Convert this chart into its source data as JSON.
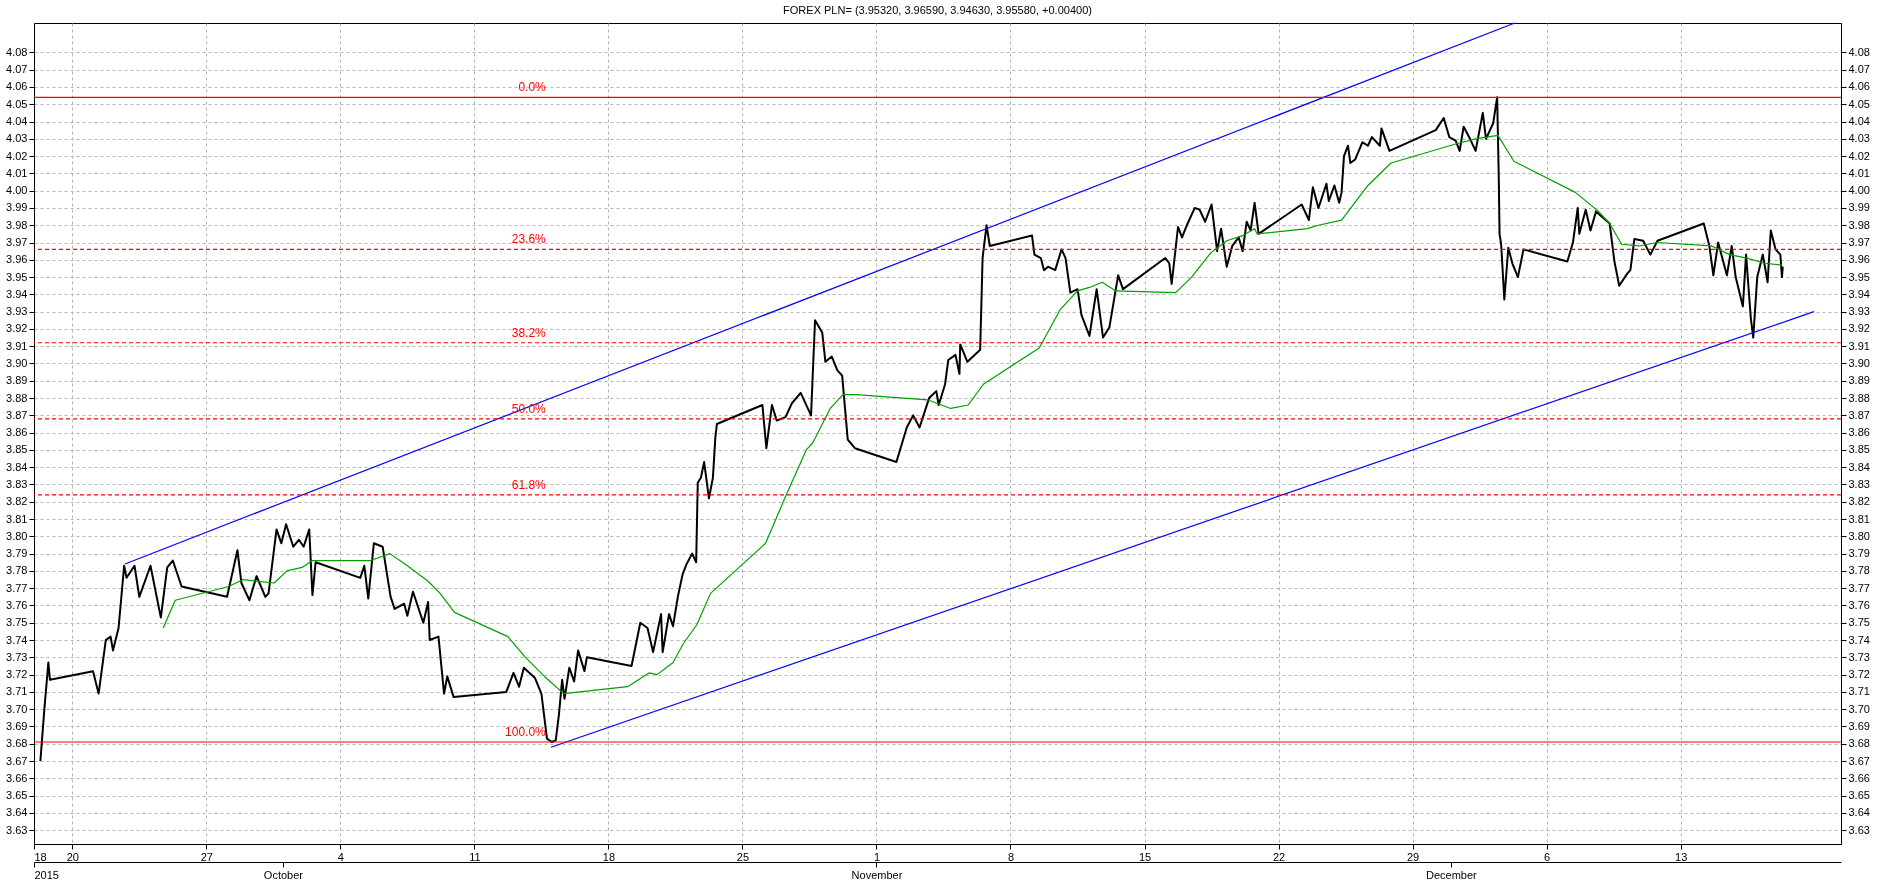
{
  "chart_data": {
    "type": "line",
    "title": "FOREX PLN= (3.95320, 3.96590, 3.94630, 3.95580, +0.00400)",
    "xlim": [
      "2015-09-18T00:00",
      "2015-12-21T09:00"
    ],
    "xticks": [
      {
        "value": "2015-09-18",
        "label": "18"
      },
      {
        "value": "2015-09-20",
        "label": "20"
      },
      {
        "value": "2015-09-27",
        "label": "27"
      },
      {
        "value": "2015-10-04",
        "label": "4"
      },
      {
        "value": "2015-10-11",
        "label": "11"
      },
      {
        "value": "2015-10-18",
        "label": "18"
      },
      {
        "value": "2015-10-25",
        "label": "25"
      },
      {
        "value": "2015-11-01",
        "label": "1"
      },
      {
        "value": "2015-11-08",
        "label": "8"
      },
      {
        "value": "2015-11-15",
        "label": "15"
      },
      {
        "value": "2015-11-22",
        "label": "22"
      },
      {
        "value": "2015-11-29",
        "label": "29"
      },
      {
        "value": "2015-12-06",
        "label": "6"
      },
      {
        "value": "2015-12-13",
        "label": "13"
      }
    ],
    "x2lim": [
      "2015-09-18T00:00",
      "2015-12-21T09:00"
    ],
    "x2ticks": [
      {
        "value": "2015-09-18",
        "label": "2015"
      },
      {
        "value": "2015-10-01",
        "label": "October"
      },
      {
        "value": "2015-11-01",
        "label": "November"
      },
      {
        "value": "2015-12-01",
        "label": "December"
      }
    ],
    "ylim": [
      3.622,
      4.097
    ],
    "yticks": [
      3.63,
      3.64,
      3.65,
      3.66,
      3.67,
      3.68,
      3.69,
      {
        "value": 3.7,
        "label": "3.70"
      },
      3.71,
      3.72,
      3.73,
      3.74,
      3.75,
      3.76,
      3.77,
      3.78,
      3.79,
      {
        "value": 3.8,
        "label": "3.80"
      },
      3.81,
      3.82,
      3.83,
      3.84,
      3.85,
      3.86,
      3.87,
      3.88,
      3.89,
      {
        "value": 3.9,
        "label": "3.90"
      },
      3.91,
      3.92,
      3.93,
      3.94,
      3.95,
      3.96,
      3.97,
      3.98,
      3.99,
      {
        "value": 4.0,
        "label": "4.00"
      },
      4.01,
      4.02,
      4.03,
      4.04,
      4.05,
      4.06,
      4.07,
      4.08
    ],
    "y2lim": [
      3.622,
      4.097
    ],
    "y2ticks": [
      3.63,
      3.64,
      3.65,
      3.66,
      3.67,
      3.68,
      3.69,
      {
        "value": 3.7,
        "label": "3.70"
      },
      3.71,
      3.72,
      3.73,
      3.74,
      3.75,
      3.76,
      3.77,
      3.78,
      3.79,
      {
        "value": 3.8,
        "label": "3.80"
      },
      3.81,
      3.82,
      3.83,
      3.84,
      3.85,
      3.86,
      3.87,
      3.88,
      3.89,
      {
        "value": 3.9,
        "label": "3.90"
      },
      3.91,
      3.92,
      3.93,
      3.94,
      3.95,
      3.96,
      3.97,
      3.98,
      3.99,
      {
        "value": 4.0,
        "label": "4.00"
      },
      4.01,
      4.02,
      4.03,
      4.04,
      4.05,
      4.06,
      4.07,
      4.08
    ],
    "grid": true,
    "series": [
      {
        "color": "#000000",
        "x": [
          "2015-09-18T08:00",
          "2015-09-18T13:00",
          "2015-09-18T18:00",
          "2015-09-18T20:00",
          "2015-09-21T02:00",
          "2015-09-21T09:00",
          "2015-09-21T18:00",
          "2015-09-22T00:00",
          "2015-09-22T03:00",
          "2015-09-22T10:00",
          "2015-09-22T17:00",
          "2015-09-22T20:00",
          "2015-09-23T06:00",
          "2015-09-23T12:00",
          "2015-09-24T02:00",
          "2015-09-24T15:00",
          "2015-09-24T23:00",
          "2015-09-25T06:00",
          "2015-09-25T17:00",
          "2015-09-28T02:00",
          "2015-09-28T15:00",
          "2015-09-28T20:00",
          "2015-09-29T06:00",
          "2015-09-29T15:00",
          "2015-09-30T02:00",
          "2015-09-30T06:00",
          "2015-09-30T16:00",
          "2015-09-30T22:00",
          "2015-10-01T04:00",
          "2015-10-01T13:00",
          "2015-10-01T20:00",
          "2015-10-02T02:00",
          "2015-10-02T09:00",
          "2015-10-02T13:00",
          "2015-10-02T17:00",
          "2015-10-05T01:00",
          "2015-10-05T06:00",
          "2015-10-05T11:00",
          "2015-10-05T18:00",
          "2015-10-06T05:00",
          "2015-10-06T15:00",
          "2015-10-06T20:00",
          "2015-10-07T08:00",
          "2015-10-07T12:00",
          "2015-10-07T19:00",
          "2015-10-08T08:00",
          "2015-10-08T14:00",
          "2015-10-08T16:00",
          "2015-10-09T03:00",
          "2015-10-09T10:00",
          "2015-10-09T14:00",
          "2015-10-09T22:00",
          "2015-10-12T16:00",
          "2015-10-13T01:00",
          "2015-10-13T08:00",
          "2015-10-13T14:00",
          "2015-10-14T04:00",
          "2015-10-14T12:00",
          "2015-10-14T19:00",
          "2015-10-15T01:00",
          "2015-10-15T06:00",
          "2015-10-15T10:00",
          "2015-10-15T14:00",
          "2015-10-15T17:00",
          "2015-10-15T23:00",
          "2015-10-16T05:00",
          "2015-10-16T10:00",
          "2015-10-16T18:00",
          "2015-10-16T21:00",
          "2015-10-19T05:00",
          "2015-10-19T16:00",
          "2015-10-20T01:00",
          "2015-10-20T08:00",
          "2015-10-20T18:00",
          "2015-10-20T20:00",
          "2015-10-21T04:00",
          "2015-10-21T09:00",
          "2015-10-21T15:00",
          "2015-10-21T21:00",
          "2015-10-22T02:00",
          "2015-10-22T09:00",
          "2015-10-22T14:00",
          "2015-10-22T16:00",
          "2015-10-22T20:00",
          "2015-10-23T00:00",
          "2015-10-23T06:00",
          "2015-10-23T11:00",
          "2015-10-23T14:00",
          "2015-10-23T16:00",
          "2015-10-26T01:00",
          "2015-10-26T06:00",
          "2015-10-26T13:00",
          "2015-10-26T19:00",
          "2015-10-27T06:00",
          "2015-10-27T14:00",
          "2015-10-28T01:00",
          "2015-10-28T14:00",
          "2015-10-28T19:00",
          "2015-10-29T04:00",
          "2015-10-29T08:00",
          "2015-10-29T16:00",
          "2015-10-29T23:00",
          "2015-10-30T05:00",
          "2015-10-30T12:00",
          "2015-10-30T21:00",
          "2015-11-02T01:00",
          "2015-11-02T14:00",
          "2015-11-02T22:00",
          "2015-11-03T06:00",
          "2015-11-03T18:00",
          "2015-11-04T03:00",
          "2015-11-04T06:00",
          "2015-11-04T14:00",
          "2015-11-04T18:00",
          "2015-11-05T03:00",
          "2015-11-05T08:00",
          "2015-11-05T09:00",
          "2015-11-05T18:00",
          "2015-11-06T10:00",
          "2015-11-06T13:00",
          "2015-11-06T18:00",
          "2015-11-06T22:00",
          "2015-11-09T03:00",
          "2015-11-09T06:00",
          "2015-11-09T14:00",
          "2015-11-09T18:00",
          "2015-11-09T23:00",
          "2015-11-10T08:00",
          "2015-11-10T16:00",
          "2015-11-10T21:00",
          "2015-11-11T03:00",
          "2015-11-11T12:00",
          "2015-11-11T17:00",
          "2015-11-12T03:00",
          "2015-11-12T12:00",
          "2015-11-12T20:00",
          "2015-11-13T04:00",
          "2015-11-13T12:00",
          "2015-11-13T15:00",
          "2015-11-13T21:00",
          "2015-11-16T02:00",
          "2015-11-16T07:00",
          "2015-11-16T10:00",
          "2015-11-16T18:00",
          "2015-11-16T23:00",
          "2015-11-17T06:00",
          "2015-11-17T15:00",
          "2015-11-17T21:00",
          "2015-11-18T04:00",
          "2015-11-18T12:00",
          "2015-11-18T19:00",
          "2015-11-19T00:00",
          "2015-11-19T07:00",
          "2015-11-19T14:00",
          "2015-11-19T22:00",
          "2015-11-20T03:00",
          "2015-11-20T08:00",
          "2015-11-20T13:00",
          "2015-11-20T18:00",
          "2015-11-20T23:00",
          "2015-11-23T05:00",
          "2015-11-23T14:00",
          "2015-11-23T19:00",
          "2015-11-24T02:00",
          "2015-11-24T12:00",
          "2015-11-24T15:00",
          "2015-11-24T22:00",
          "2015-11-25T04:00",
          "2015-11-25T07:00",
          "2015-11-25T10:00",
          "2015-11-25T15:00",
          "2015-11-25T18:00",
          "2015-11-26T00:00",
          "2015-11-26T09:00",
          "2015-11-26T16:00",
          "2015-11-26T21:00",
          "2015-11-27T07:00",
          "2015-11-27T09:00",
          "2015-11-27T19:00",
          "2015-11-30T05:00",
          "2015-11-30T15:00",
          "2015-11-30T22:00",
          "2015-12-01T06:00",
          "2015-12-01T11:00",
          "2015-12-01T16:00",
          "2015-12-02T00:00",
          "2015-12-02T07:00",
          "2015-12-02T16:00",
          "2015-12-02T20:00",
          "2015-12-03T05:00",
          "2015-12-03T10:00",
          "2015-12-03T12:00",
          "2015-12-03T13:00",
          "2015-12-03T15:00",
          "2015-12-03T19:00",
          "2015-12-04T00:00",
          "2015-12-04T05:00",
          "2015-12-04T12:00",
          "2015-12-04T19:00",
          "2015-12-07T02:00",
          "2015-12-07T09:00",
          "2015-12-07T15:00",
          "2015-12-07T17:00",
          "2015-12-08T01:00",
          "2015-12-08T07:00",
          "2015-12-08T14:00",
          "2015-12-08T21:00",
          "2015-12-09T07:00",
          "2015-12-09T13:00",
          "2015-12-09T19:00",
          "2015-12-10T05:00",
          "2015-12-10T09:00",
          "2015-12-10T14:00",
          "2015-12-11T01:00",
          "2015-12-11T10:00",
          "2015-12-11T19:00",
          "2015-12-14T05:00",
          "2015-12-14T12:00",
          "2015-12-14T17:00",
          "2015-12-14T23:00",
          "2015-12-15T10:00",
          "2015-12-15T16:00",
          "2015-12-15T21:00",
          "2015-12-16T06:00",
          "2015-12-16T10:00",
          "2015-12-16T16:00",
          "2015-12-16T19:00",
          "2015-12-17T00:00",
          "2015-12-17T07:00",
          "2015-12-17T13:00",
          "2015-12-17T17:00",
          "2015-12-17T23:00",
          "2015-12-18T05:00",
          "2015-12-18T07:00",
          "2015-12-18T08:00"
        ],
        "values": [
          3.67,
          3.7,
          3.727,
          3.717,
          3.722,
          3.709,
          3.74,
          3.742,
          3.734,
          3.747,
          3.783,
          3.776,
          3.783,
          3.765,
          3.783,
          3.753,
          3.782,
          3.786,
          3.771,
          3.765,
          3.792,
          3.773,
          3.763,
          3.777,
          3.765,
          3.767,
          3.804,
          3.796,
          3.807,
          3.794,
          3.798,
          3.794,
          3.804,
          3.766,
          3.785,
          3.776,
          3.783,
          3.764,
          3.796,
          3.794,
          3.765,
          3.758,
          3.761,
          3.754,
          3.768,
          3.75,
          3.762,
          3.74,
          3.742,
          3.709,
          3.719,
          3.707,
          3.71,
          3.721,
          3.713,
          3.724,
          3.718,
          3.709,
          3.683,
          3.681,
          3.682,
          3.697,
          3.717,
          3.706,
          3.724,
          3.716,
          3.734,
          3.722,
          3.73,
          3.725,
          3.75,
          3.747,
          3.733,
          3.755,
          3.733,
          3.755,
          3.748,
          3.765,
          3.778,
          3.784,
          3.79,
          3.785,
          3.831,
          3.834,
          3.843,
          3.822,
          3.834,
          3.857,
          3.865,
          3.876,
          3.851,
          3.876,
          3.867,
          3.869,
          3.877,
          3.883,
          3.87,
          3.925,
          3.918,
          3.901,
          3.904,
          3.896,
          3.893,
          3.856,
          3.851,
          3.843,
          3.863,
          3.87,
          3.863,
          3.88,
          3.884,
          3.876,
          3.888,
          3.902,
          3.905,
          3.894,
          3.911,
          3.901,
          3.908,
          3.961,
          3.98,
          3.968,
          3.974,
          3.963,
          3.961,
          3.954,
          3.956,
          3.954,
          3.966,
          3.961,
          3.941,
          3.943,
          3.928,
          3.916,
          3.943,
          3.915,
          3.921,
          3.943,
          3.951,
          3.943,
          3.961,
          3.958,
          3.946,
          3.979,
          3.973,
          3.981,
          3.99,
          3.989,
          3.982,
          3.992,
          3.965,
          3.978,
          3.956,
          3.968,
          3.973,
          3.965,
          3.982,
          3.977,
          3.993,
          3.975,
          3.992,
          3.983,
          4.002,
          3.99,
          4.004,
          3.994,
          4.003,
          3.993,
          3.999,
          4.02,
          4.026,
          4.016,
          4.018,
          4.028,
          4.026,
          4.031,
          4.026,
          4.036,
          4.023,
          4.035,
          4.042,
          4.031,
          4.029,
          4.023,
          4.037,
          4.03,
          4.023,
          4.045,
          4.03,
          4.039,
          4.054,
          4.008,
          3.975,
          3.969,
          3.937,
          3.967,
          3.958,
          3.95,
          3.966,
          3.959,
          3.97,
          3.99,
          3.975,
          3.989,
          3.977,
          3.988,
          3.985,
          3.981,
          3.959,
          3.945,
          3.952,
          3.954,
          3.972,
          3.971,
          3.963,
          3.971,
          3.981,
          3.968,
          3.951,
          3.97,
          3.951,
          3.968,
          3.95,
          3.933,
          3.963,
          3.926,
          3.915,
          3.95,
          3.963,
          3.947,
          3.977,
          3.966,
          3.963,
          3.95,
          3.956
        ]
      },
      {
        "color": "#00a000",
        "x": [
          "2015-09-24T18:00",
          "2015-09-25T09:00",
          "2015-09-28T04:00",
          "2015-09-28T22:00",
          "2015-09-29T17:00",
          "2015-09-30T13:00",
          "2015-10-01T05:00",
          "2015-10-02T00:00",
          "2015-10-02T13:00",
          "2015-10-05T14:00",
          "2015-10-06T14:00",
          "2015-10-07T12:00",
          "2015-10-08T14:00",
          "2015-10-09T05:00",
          "2015-10-09T23:00",
          "2015-10-12T18:00",
          "2015-10-13T16:00",
          "2015-10-14T18:00",
          "2015-10-15T16:00",
          "2015-10-19T00:00",
          "2015-10-20T03:00",
          "2015-10-20T13:00",
          "2015-10-21T09:00",
          "2015-10-21T22:00",
          "2015-10-22T15:00",
          "2015-10-23T08:00",
          "2015-10-26T05:00",
          "2015-10-27T06:00",
          "2015-10-28T08:00",
          "2015-10-28T16:00",
          "2015-10-29T14:00",
          "2015-10-30T06:00",
          "2015-10-30T23:00",
          "2015-11-03T16:00",
          "2015-11-04T21:00",
          "2015-11-05T19:00",
          "2015-11-06T14:00",
          "2015-11-09T12:00",
          "2015-11-10T14:00",
          "2015-11-11T12:00",
          "2015-11-12T03:00",
          "2015-11-12T19:00",
          "2015-11-13T12:00",
          "2015-11-16T15:00",
          "2015-11-17T11:00",
          "2015-11-18T11:00",
          "2015-11-19T07:00",
          "2015-11-20T03:00",
          "2015-11-20T18:00",
          "2015-11-20T21:00",
          "2015-11-23T12:00",
          "2015-11-24T02:00",
          "2015-11-25T07:00",
          "2015-11-26T16:00",
          "2015-11-27T21:00",
          "2015-12-01T06:00",
          "2015-12-02T07:00",
          "2015-12-03T11:00",
          "2015-12-04T07:00",
          "2015-12-07T12:00",
          "2015-12-08T17:00",
          "2015-12-09T07:00",
          "2015-12-09T22:00",
          "2015-12-10T20:00",
          "2015-12-11T18:00",
          "2015-12-14T15:00",
          "2015-12-15T13:00",
          "2015-12-16T11:00",
          "2015-12-17T09:00",
          "2015-12-18T07:00"
        ],
        "values": [
          3.747,
          3.763,
          3.771,
          3.775,
          3.774,
          3.773,
          3.78,
          3.782,
          3.786,
          3.786,
          3.79,
          3.783,
          3.774,
          3.767,
          3.756,
          3.742,
          3.73,
          3.718,
          3.709,
          3.713,
          3.721,
          3.72,
          3.727,
          3.738,
          3.749,
          3.767,
          3.796,
          3.823,
          3.85,
          3.854,
          3.874,
          3.882,
          3.882,
          3.879,
          3.874,
          3.876,
          3.888,
          3.909,
          3.931,
          3.942,
          3.944,
          3.947,
          3.942,
          3.941,
          3.95,
          3.964,
          3.971,
          3.974,
          3.978,
          3.975,
          3.978,
          3.98,
          3.983,
          4.003,
          4.016,
          4.027,
          4.03,
          4.032,
          4.017,
          3.999,
          3.988,
          3.981,
          3.969,
          3.968,
          3.97,
          3.968,
          3.963,
          3.961,
          3.958,
          3.957
        ]
      },
      {
        "type": "line",
        "color": "#0000ff",
        "x": [
          "2015-09-22T18:00",
          "2015-12-04T08:00"
        ],
        "values": [
          3.784,
          4.097
        ]
      },
      {
        "type": "line",
        "color": "#0000ff",
        "x": [
          "2015-10-15T00:00",
          "2015-12-19T23:00"
        ],
        "values": [
          3.678,
          3.93
        ]
      }
    ],
    "ref_lines": [
      {
        "axis": "y",
        "value": 4.054,
        "color": "#ff0000",
        "line_style": "solid"
      },
      {
        "axis": "y",
        "value": 3.966,
        "color": "#ff0000",
        "line_style": "dashed"
      },
      {
        "axis": "y",
        "value": 3.912,
        "color": "#ff0000",
        "line_style": "dashed"
      },
      {
        "axis": "y",
        "value": 3.868,
        "color": "#ff0000",
        "line_style": "dashed"
      },
      {
        "axis": "y",
        "value": 3.824,
        "color": "#ff0000",
        "line_style": "dashed"
      },
      {
        "axis": "y",
        "value": 3.681,
        "color": "#ff0000",
        "line_style": "solid"
      }
    ],
    "annotations": [
      {
        "text": "0.0%",
        "x": "2015-10-15T01:00",
        "y": 4.054
      },
      {
        "text": "23.6%",
        "x": "2015-10-15T01:00",
        "y": 3.966
      },
      {
        "text": "38.2%",
        "x": "2015-10-15T01:00",
        "y": 3.912
      },
      {
        "text": "50.0%",
        "x": "2015-10-15T01:00",
        "y": 3.868
      },
      {
        "text": "61.8%",
        "x": "2015-10-15T01:00",
        "y": 3.824
      },
      {
        "text": "100.0%",
        "x": "2015-10-15T01:00",
        "y": 3.681
      }
    ]
  }
}
